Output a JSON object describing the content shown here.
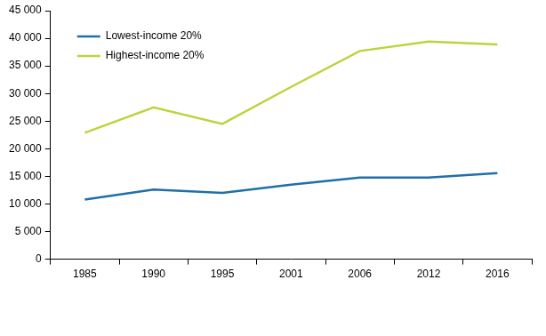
{
  "chart_data": {
    "type": "line",
    "categories": [
      "1985",
      "1990",
      "1995",
      "2001",
      "2006",
      "2012",
      "2016"
    ],
    "series": [
      {
        "name": "Lowest-income 20%",
        "color": "#1f6fa8",
        "values": [
          10800,
          12600,
          12000,
          13500,
          14800,
          14800,
          15600
        ]
      },
      {
        "name": "Highest-income 20%",
        "color": "#b8d63c",
        "values": [
          22900,
          27500,
          24500,
          31200,
          37700,
          39400,
          38900
        ]
      }
    ],
    "ylim": [
      0,
      45000
    ],
    "yticks": [
      0,
      {
        "value": 5000,
        "label": "5 000"
      },
      {
        "value": 10000,
        "label": "10 000"
      },
      {
        "value": 15000,
        "label": "15 000"
      },
      {
        "value": 20000,
        "label": "20 000"
      },
      {
        "value": 25000,
        "label": "25 000"
      },
      {
        "value": 30000,
        "label": "30 000"
      },
      {
        "value": 35000,
        "label": "35 000"
      },
      {
        "value": 40000,
        "label": "40 000"
      },
      {
        "value": 45000,
        "label": "45 000"
      }
    ],
    "grid": false,
    "legend": "upper left"
  }
}
